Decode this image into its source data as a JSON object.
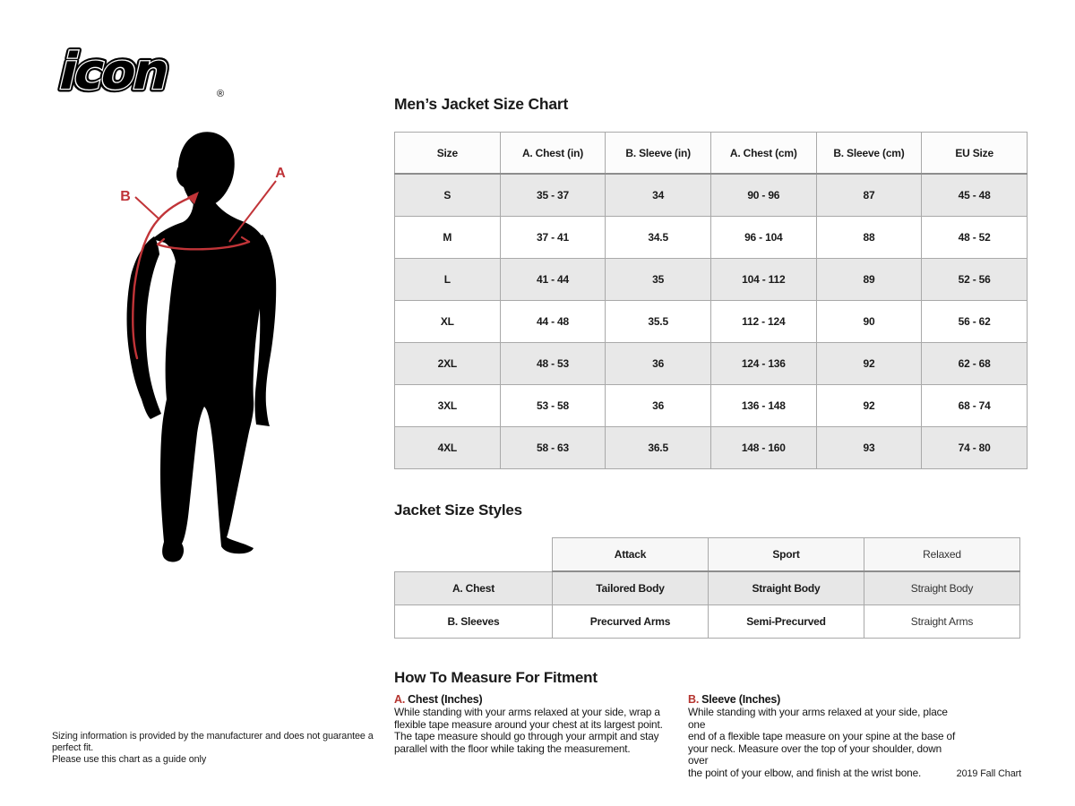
{
  "brand": {
    "logo_text": "icon",
    "registered_mark": "®"
  },
  "figure": {
    "label_a": "A",
    "label_b": "B"
  },
  "size_chart": {
    "title": "Men’s Jacket Size Chart",
    "columns": [
      "Size",
      "A. Chest (in)",
      "B. Sleeve (in)",
      "A. Chest (cm)",
      "B. Sleeve (cm)",
      "EU Size"
    ],
    "rows": [
      [
        "S",
        "35 - 37",
        "34",
        "90 - 96",
        "87",
        "45 - 48"
      ],
      [
        "M",
        "37 - 41",
        "34.5",
        "96 - 104",
        "88",
        "48 - 52"
      ],
      [
        "L",
        "41 - 44",
        "35",
        "104 - 112",
        "89",
        "52 - 56"
      ],
      [
        "XL",
        "44 - 48",
        "35.5",
        "112 - 124",
        "90",
        "56 - 62"
      ],
      [
        "2XL",
        "48 - 53",
        "36",
        "124 - 136",
        "92",
        "62 - 68"
      ],
      [
        "3XL",
        "53 - 58",
        "36",
        "136 - 148",
        "92",
        "68 - 74"
      ],
      [
        "4XL",
        "58 - 63",
        "36.5",
        "148 - 160",
        "93",
        "74 - 80"
      ]
    ]
  },
  "styles_chart": {
    "title": "Jacket Size Styles",
    "columns": [
      "Attack",
      "Sport",
      "Relaxed"
    ],
    "rows": [
      {
        "label": "A. Chest",
        "values": [
          "Tailored Body",
          "Straight Body",
          "Straight Body"
        ]
      },
      {
        "label": "B. Sleeves",
        "values": [
          "Precurved Arms",
          "Semi-Precurved",
          "Straight Arms"
        ]
      }
    ]
  },
  "measure": {
    "title": "How To Measure For Fitment",
    "sections": [
      {
        "letter": "A.",
        "heading": "Chest (Inches)",
        "body": "While standing with your arms relaxed at your side, wrap a\nflexible tape measure around your chest at its largest point.\nThe tape measure should go through your armpit and stay\nparallel with the floor while taking the measurement."
      },
      {
        "letter": "B.",
        "heading": "Sleeve (Inches)",
        "body": "While standing with your arms relaxed at your side, place one\nend of a flexible tape measure on your spine at the base of\nyour neck. Measure over the top of your shoulder, down over\nthe point of your elbow, and finish at the wrist bone."
      }
    ]
  },
  "footer": {
    "disclaimer": "Sizing information is provided by the manufacturer and does not guarantee a perfect fit.\nPlease use this chart as a guide only",
    "edition": "2019 Fall Chart"
  },
  "colors": {
    "accent_red": "#c13438",
    "silhouette_black": "#000000",
    "alt_row_gray": "#e8e8e8",
    "header_bg": "#fcfcfc",
    "border_gray": "#a9a9a9"
  }
}
